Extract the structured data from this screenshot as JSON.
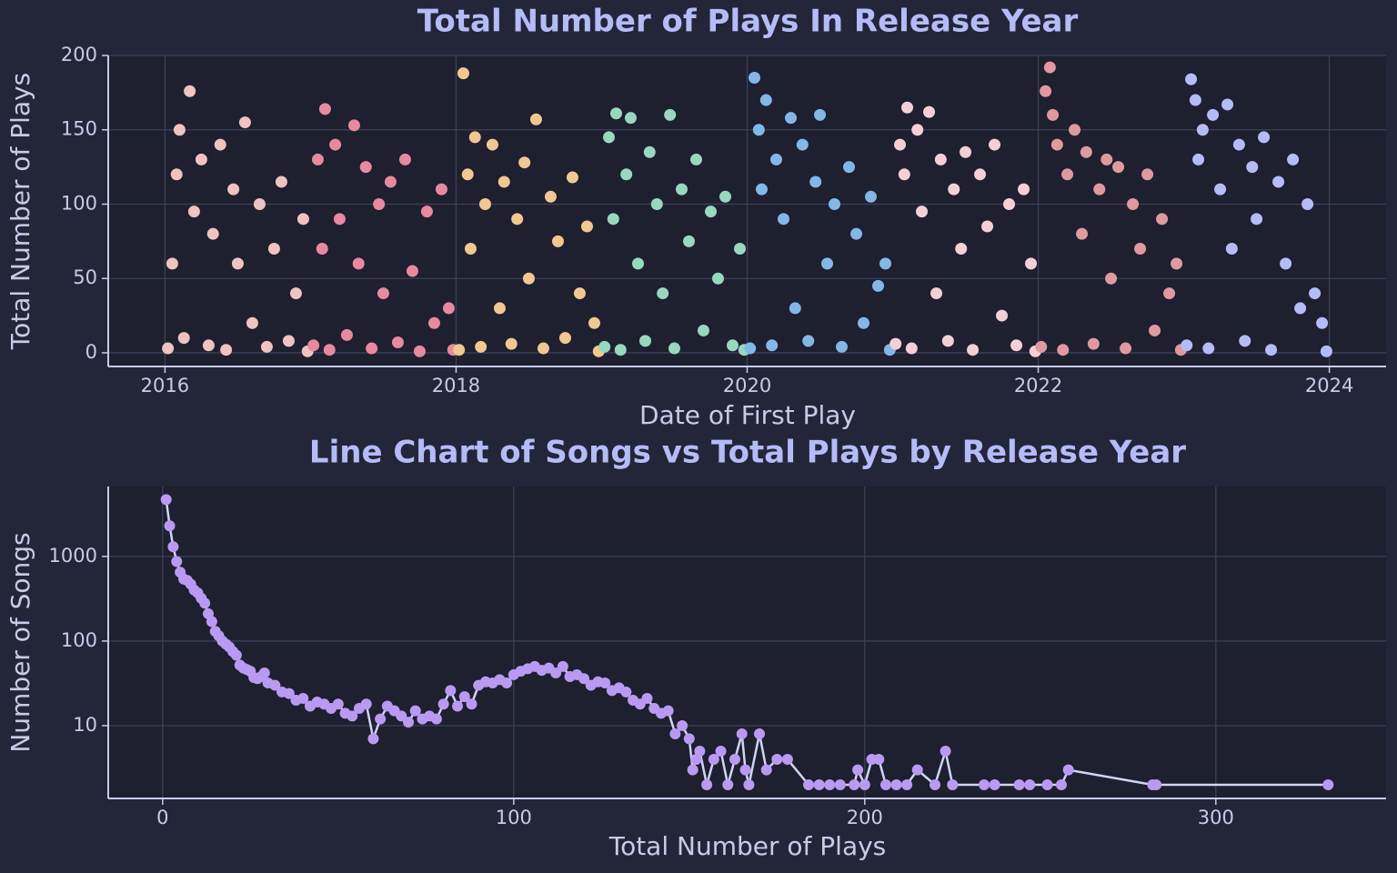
{
  "chart_data": [
    {
      "type": "scatter",
      "title": "Total Number of Plays In Release Year",
      "xlabel": "Date of First Play",
      "ylabel": "Total Number of Plays",
      "xlim": [
        2015.61,
        2024.39
      ],
      "xticks": [
        2016,
        2018,
        2020,
        2022,
        2024
      ],
      "ylim": [
        -9.2,
        200
      ],
      "yticks": [
        0,
        50,
        100,
        150,
        200
      ],
      "grid": true,
      "series": [
        {
          "color": "#f0c2c0",
          "x": [
            2016.02,
            2016.05,
            2016.08,
            2016.1,
            2016.13,
            2016.17,
            2016.2,
            2016.25,
            2016.3,
            2016.33,
            2016.38,
            2016.42,
            2016.47,
            2016.5,
            2016.55,
            2016.6,
            2016.65,
            2016.7,
            2016.75,
            2016.8,
            2016.85,
            2016.9,
            2016.95,
            2016.98
          ],
          "values": [
            3,
            60,
            120,
            150,
            10,
            176,
            95,
            130,
            5,
            80,
            140,
            2,
            110,
            60,
            155,
            20,
            100,
            4,
            70,
            115,
            8,
            40,
            90,
            1
          ]
        },
        {
          "color": "#e8899f",
          "x": [
            2017.02,
            2017.05,
            2017.08,
            2017.1,
            2017.13,
            2017.17,
            2017.2,
            2017.25,
            2017.3,
            2017.33,
            2017.38,
            2017.42,
            2017.47,
            2017.5,
            2017.55,
            2017.6,
            2017.65,
            2017.7,
            2017.75,
            2017.8,
            2017.85,
            2017.9,
            2017.95,
            2017.98
          ],
          "values": [
            5,
            130,
            70,
            164,
            2,
            140,
            90,
            12,
            153,
            60,
            125,
            3,
            100,
            40,
            115,
            7,
            130,
            55,
            1,
            95,
            20,
            110,
            30,
            2
          ]
        },
        {
          "color": "#f2c792",
          "x": [
            2018.02,
            2018.05,
            2018.08,
            2018.1,
            2018.13,
            2018.17,
            2018.2,
            2018.25,
            2018.3,
            2018.33,
            2018.38,
            2018.42,
            2018.47,
            2018.5,
            2018.55,
            2018.6,
            2018.65,
            2018.7,
            2018.75,
            2018.8,
            2018.85,
            2018.9,
            2018.95,
            2018.98
          ],
          "values": [
            2,
            188,
            120,
            70,
            145,
            4,
            100,
            140,
            30,
            115,
            6,
            90,
            128,
            50,
            157,
            3,
            105,
            75,
            10,
            118,
            40,
            85,
            20,
            1
          ]
        },
        {
          "color": "#98d8c0",
          "x": [
            2019.02,
            2019.05,
            2019.08,
            2019.1,
            2019.13,
            2019.17,
            2019.2,
            2019.25,
            2019.3,
            2019.33,
            2019.38,
            2019.42,
            2019.47,
            2019.5,
            2019.55,
            2019.6,
            2019.65,
            2019.7,
            2019.75,
            2019.8,
            2019.85,
            2019.9,
            2019.95,
            2019.98
          ],
          "values": [
            4,
            145,
            90,
            161,
            2,
            120,
            158,
            60,
            8,
            135,
            100,
            40,
            160,
            3,
            110,
            75,
            130,
            15,
            95,
            50,
            105,
            5,
            70,
            2
          ]
        },
        {
          "color": "#82b8e8",
          "x": [
            2020.02,
            2020.05,
            2020.08,
            2020.1,
            2020.13,
            2020.17,
            2020.2,
            2020.25,
            2020.3,
            2020.33,
            2020.38,
            2020.42,
            2020.47,
            2020.5,
            2020.55,
            2020.6,
            2020.65,
            2020.7,
            2020.75,
            2020.8,
            2020.85,
            2020.9,
            2020.95,
            2020.98
          ],
          "values": [
            3,
            185,
            150,
            110,
            170,
            5,
            130,
            90,
            158,
            30,
            140,
            8,
            115,
            160,
            60,
            100,
            4,
            125,
            80,
            20,
            105,
            45,
            60,
            2
          ]
        },
        {
          "color": "#f4d0d6",
          "x": [
            2021.02,
            2021.05,
            2021.08,
            2021.1,
            2021.13,
            2021.17,
            2021.2,
            2021.25,
            2021.3,
            2021.33,
            2021.38,
            2021.42,
            2021.47,
            2021.5,
            2021.55,
            2021.6,
            2021.65,
            2021.7,
            2021.75,
            2021.8,
            2021.85,
            2021.9,
            2021.95,
            2021.98
          ],
          "values": [
            6,
            140,
            120,
            165,
            3,
            150,
            95,
            162,
            40,
            130,
            8,
            110,
            70,
            135,
            2,
            120,
            85,
            140,
            25,
            100,
            5,
            110,
            60,
            1
          ]
        },
        {
          "color": "#e0999f",
          "x": [
            2022.02,
            2022.05,
            2022.08,
            2022.1,
            2022.13,
            2022.17,
            2022.2,
            2022.25,
            2022.3,
            2022.33,
            2022.38,
            2022.42,
            2022.47,
            2022.5,
            2022.55,
            2022.6,
            2022.65,
            2022.7,
            2022.75,
            2022.8,
            2022.85,
            2022.9,
            2022.95,
            2022.98
          ],
          "values": [
            4,
            176,
            192,
            160,
            140,
            2,
            120,
            150,
            80,
            135,
            6,
            110,
            130,
            50,
            125,
            3,
            100,
            70,
            120,
            15,
            90,
            40,
            60,
            2
          ]
        },
        {
          "color": "#b4bcf8",
          "x": [
            2023.02,
            2023.05,
            2023.08,
            2023.1,
            2023.13,
            2023.17,
            2023.2,
            2023.25,
            2023.3,
            2023.33,
            2023.38,
            2023.42,
            2023.47,
            2023.5,
            2023.55,
            2023.6,
            2023.65,
            2023.7,
            2023.75,
            2023.8,
            2023.85,
            2023.9,
            2023.95,
            2023.98
          ],
          "values": [
            5,
            184,
            170,
            130,
            150,
            3,
            160,
            110,
            167,
            70,
            140,
            8,
            125,
            90,
            145,
            2,
            115,
            60,
            130,
            30,
            100,
            40,
            20,
            1
          ]
        }
      ]
    },
    {
      "type": "line",
      "title": "Line Chart of Songs vs Total Plays by Release Year",
      "xlabel": "Total Number of Plays",
      "ylabel": "Number of Songs",
      "xlim": [
        -15.5,
        348.5
      ],
      "xticks": [
        0,
        100,
        200,
        300
      ],
      "ylim": [
        1.38,
        6700
      ],
      "yticks": [
        10,
        100,
        1000
      ],
      "yscale": "log",
      "grid": true,
      "color": "#b99af2",
      "line_color": "#d0d4f4",
      "x": [
        1,
        2,
        3,
        4,
        5,
        6,
        7,
        8,
        9,
        10,
        11,
        12,
        13,
        14,
        15,
        16,
        17,
        18,
        19,
        20,
        21,
        22,
        23,
        24,
        25,
        26,
        27,
        28,
        29,
        30,
        32,
        34,
        36,
        38,
        40,
        42,
        44,
        46,
        48,
        50,
        52,
        54,
        56,
        58,
        60,
        62,
        64,
        66,
        68,
        70,
        72,
        74,
        76,
        78,
        80,
        82,
        84,
        86,
        88,
        90,
        92,
        94,
        96,
        98,
        100,
        102,
        104,
        106,
        108,
        110,
        112,
        114,
        116,
        118,
        120,
        122,
        124,
        126,
        128,
        130,
        132,
        134,
        136,
        138,
        140,
        142,
        144,
        146,
        148,
        150,
        151,
        152,
        153,
        155,
        157,
        159,
        161,
        163,
        165,
        166,
        167,
        170,
        172,
        175,
        178,
        184,
        187,
        190,
        193,
        197,
        198,
        200,
        202,
        204,
        206,
        209,
        212,
        215,
        220,
        223,
        225,
        234,
        237,
        244,
        247,
        252,
        256,
        258,
        282,
        283,
        332
      ],
      "values": [
        4700,
        2300,
        1300,
        870,
        650,
        540,
        520,
        470,
        400,
        370,
        320,
        280,
        210,
        170,
        130,
        115,
        100,
        92,
        85,
        75,
        68,
        52,
        48,
        46,
        44,
        37,
        36,
        38,
        42,
        32,
        30,
        25,
        24,
        20,
        21,
        17,
        19,
        18,
        16,
        18,
        14,
        13,
        16,
        18,
        7,
        12,
        17,
        15,
        13,
        11,
        15,
        12,
        13,
        12,
        18,
        26,
        17,
        22,
        18,
        30,
        33,
        32,
        35,
        32,
        40,
        44,
        47,
        50,
        45,
        48,
        42,
        50,
        38,
        40,
        36,
        30,
        33,
        32,
        26,
        28,
        25,
        20,
        18,
        21,
        16,
        14,
        15,
        8,
        10,
        7,
        3,
        4,
        5,
        2,
        4,
        5,
        2,
        4,
        8,
        3,
        2,
        8,
        3,
        4,
        4,
        2,
        2,
        2,
        2,
        2,
        3,
        2,
        4,
        4,
        2,
        2,
        2,
        3,
        2,
        5,
        2,
        2,
        2,
        2,
        2,
        2,
        2,
        3,
        2,
        2,
        2
      ]
    }
  ]
}
